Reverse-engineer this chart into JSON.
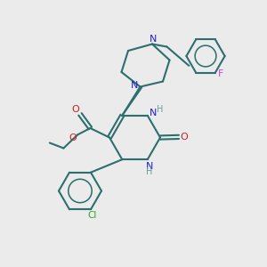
{
  "bg_color": "#ebebeb",
  "bond_color": "#2d6e6e",
  "n_color": "#2020cc",
  "o_color": "#cc2020",
  "cl_color": "#22aa22",
  "f_color": "#cc44cc",
  "h_color": "#6a9a9a",
  "lw": 1.5,
  "figsize": [
    3.0,
    3.0
  ],
  "dpi": 100,
  "xlim": [
    0,
    10
  ],
  "ylim": [
    0,
    10
  ]
}
